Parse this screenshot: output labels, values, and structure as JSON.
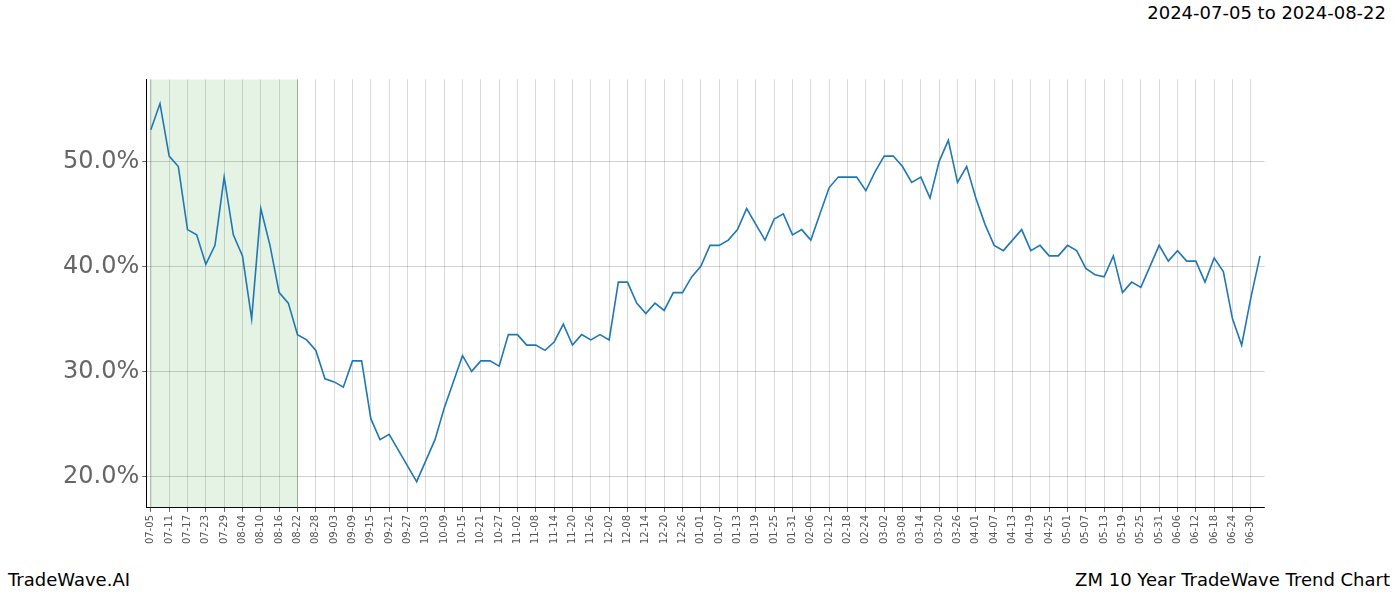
{
  "chart_data": {
    "type": "line",
    "title": "2024-07-05 to 2024-08-22",
    "source": "TradeWave.AI",
    "caption": "ZM 10 Year TradeWave Trend Chart",
    "shaded_span": [
      "07-05",
      "08-22"
    ],
    "categories": [
      "07-05",
      null,
      "07-11",
      null,
      "07-17",
      null,
      "07-23",
      null,
      "07-29",
      null,
      "08-04",
      null,
      "08-10",
      null,
      "08-16",
      null,
      "08-22",
      null,
      "08-28",
      null,
      "09-03",
      null,
      "09-09",
      null,
      "09-15",
      null,
      "09-21",
      null,
      "09-27",
      null,
      "10-03",
      null,
      "10-09",
      null,
      "10-15",
      null,
      "10-21",
      null,
      "10-27",
      null,
      "11-02",
      null,
      "11-08",
      null,
      "11-14",
      null,
      "11-20",
      null,
      "11-26",
      null,
      "12-02",
      null,
      "12-08",
      null,
      "12-14",
      null,
      "12-20",
      null,
      "12-26",
      null,
      "01-01",
      null,
      "01-07",
      null,
      "01-13",
      null,
      "01-19",
      null,
      "01-25",
      null,
      "01-31",
      null,
      "02-06",
      null,
      "02-12",
      null,
      "02-18",
      null,
      "02-24",
      null,
      "03-02",
      null,
      "03-08",
      null,
      "03-14",
      null,
      "03-20",
      null,
      "03-26",
      null,
      "04-01",
      null,
      "04-07",
      null,
      "04-13",
      null,
      "04-19",
      null,
      "04-25",
      null,
      "05-01",
      null,
      "05-07",
      null,
      "05-13",
      null,
      "05-19",
      null,
      "05-25",
      null,
      "05-31",
      null,
      "06-06",
      null,
      "06-12",
      null,
      "06-18",
      null,
      "06-24",
      null,
      "06-30",
      null
    ],
    "values": [
      53,
      55.5,
      50.5,
      49.5,
      43.5,
      43,
      40.2,
      42,
      48.5,
      43,
      41,
      35,
      45.5,
      42,
      37.5,
      36.5,
      33.5,
      33,
      32,
      29.3,
      29,
      28.5,
      31,
      31,
      25.5,
      23.5,
      24,
      22.5,
      21,
      19.5,
      21.5,
      23.5,
      26.5,
      29,
      31.5,
      30,
      31,
      31,
      30.5,
      33.5,
      33.5,
      32.5,
      32.5,
      32,
      32.8,
      34.5,
      32.5,
      33.5,
      33,
      33.5,
      33,
      38.5,
      38.5,
      36.5,
      35.5,
      36.5,
      35.8,
      37.5,
      37.5,
      39,
      40,
      42,
      42,
      42.5,
      43.5,
      45.5,
      44,
      42.5,
      44.5,
      45,
      43,
      43.5,
      42.5,
      45,
      47.5,
      48.5,
      48.5,
      48.5,
      47.2,
      49,
      50.5,
      50.5,
      49.5,
      48,
      48.5,
      46.5,
      50,
      52,
      48,
      49.5,
      46.5,
      44,
      42,
      41.5,
      42.5,
      43.5,
      41.5,
      42,
      41,
      41,
      42,
      41.5,
      39.8,
      39.2,
      39,
      41,
      37.5,
      38.5,
      38,
      40,
      42,
      40.5,
      41.5,
      40.5,
      40.5,
      38.5,
      40.8,
      39.5,
      35,
      32.5,
      37,
      41
    ],
    "color": "#1f77b4",
    "ylim": [
      17,
      57.8
    ],
    "yticks": [
      {
        "value": 20,
        "label": "20.0%"
      },
      {
        "value": 30,
        "label": "30.0%"
      },
      {
        "value": 40,
        "label": "40.0%"
      },
      {
        "value": 50,
        "label": "50.0%"
      }
    ],
    "grid": true,
    "legend": false
  }
}
